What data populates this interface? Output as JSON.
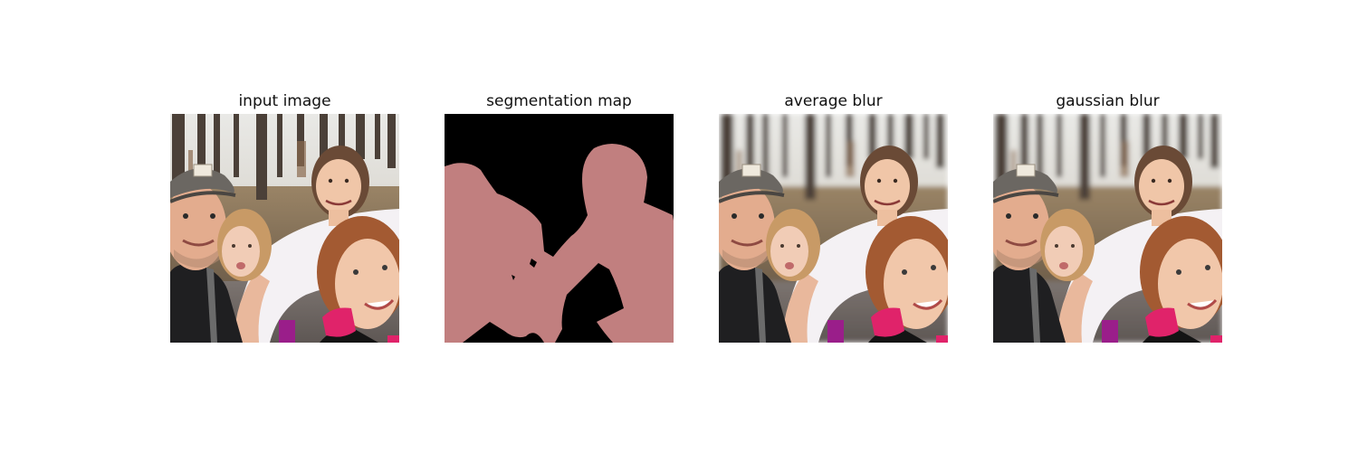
{
  "panels": [
    {
      "title": "input image"
    },
    {
      "title": "segmentation map"
    },
    {
      "title": "average blur"
    },
    {
      "title": "gaussian blur"
    }
  ],
  "colors": {
    "segmentation_foreground": "#c17f7f",
    "segmentation_background": "#000000"
  }
}
